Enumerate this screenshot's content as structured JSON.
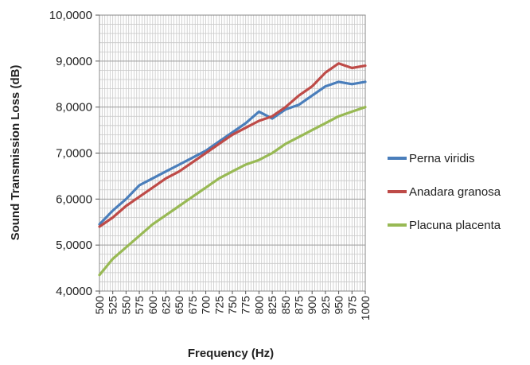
{
  "chart_data": {
    "type": "line",
    "title": "",
    "xlabel": "Frequency (Hz)",
    "ylabel": "Sound Transmission Loss (dB)",
    "xlim": [
      500,
      1000
    ],
    "ylim": [
      4,
      10
    ],
    "x_ticks": [
      500,
      525,
      550,
      575,
      600,
      625,
      650,
      675,
      700,
      725,
      750,
      775,
      800,
      825,
      850,
      875,
      900,
      925,
      950,
      975,
      1000
    ],
    "x_tick_labels": [
      "500",
      "525",
      "550",
      "575",
      "600",
      "625",
      "650",
      "675",
      "700",
      "725",
      "750",
      "775",
      "800",
      "825",
      "850",
      "875",
      "900",
      "925",
      "950",
      "975",
      "1000"
    ],
    "y_ticks": [
      4,
      5,
      6,
      7,
      8,
      9,
      10
    ],
    "y_tick_labels": [
      "4,0000",
      "5,0000",
      "6,0000",
      "7,0000",
      "8,0000",
      "9,0000",
      "10,0000"
    ],
    "grid": true,
    "legend_position": "right",
    "series": [
      {
        "name": "Perna viridis",
        "color": "#4a7ebb",
        "x": [
          500,
          525,
          550,
          575,
          600,
          625,
          650,
          675,
          700,
          725,
          750,
          775,
          800,
          825,
          850,
          875,
          900,
          925,
          950,
          975,
          1000
        ],
        "y": [
          5.45,
          5.75,
          6.0,
          6.3,
          6.45,
          6.6,
          6.75,
          6.9,
          7.05,
          7.25,
          7.45,
          7.65,
          7.9,
          7.75,
          7.95,
          8.05,
          8.25,
          8.45,
          8.55,
          8.5,
          8.55
        ]
      },
      {
        "name": "Anadara granosa",
        "color": "#be4b48",
        "x": [
          500,
          525,
          550,
          575,
          600,
          625,
          650,
          675,
          700,
          725,
          750,
          775,
          800,
          825,
          850,
          875,
          900,
          925,
          950,
          975,
          1000
        ],
        "y": [
          5.4,
          5.6,
          5.85,
          6.05,
          6.25,
          6.45,
          6.6,
          6.8,
          7.0,
          7.2,
          7.4,
          7.55,
          7.7,
          7.8,
          8.0,
          8.25,
          8.45,
          8.75,
          8.95,
          8.85,
          8.9
        ]
      },
      {
        "name": "Placuna placenta",
        "color": "#98b954",
        "x": [
          500,
          525,
          550,
          575,
          600,
          625,
          650,
          675,
          700,
          725,
          750,
          775,
          800,
          825,
          850,
          875,
          900,
          925,
          950,
          975,
          1000
        ],
        "y": [
          4.35,
          4.7,
          4.95,
          5.2,
          5.45,
          5.65,
          5.85,
          6.05,
          6.25,
          6.45,
          6.6,
          6.75,
          6.85,
          7.0,
          7.2,
          7.35,
          7.5,
          7.65,
          7.8,
          7.9,
          8.0
        ]
      }
    ]
  }
}
